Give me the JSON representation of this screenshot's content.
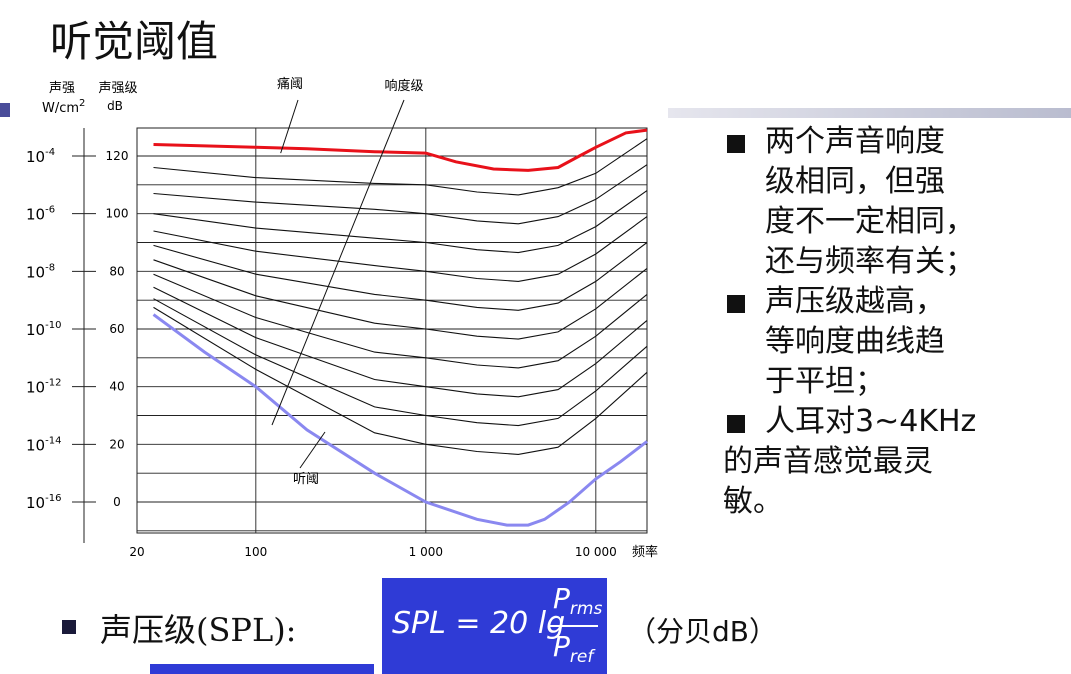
{
  "title": "听觉阈值",
  "chart_data": {
    "type": "line",
    "ylabel_left_title": "声强",
    "ylabel_left_unit": "W/cm",
    "ylabel_left_unit_sup": "2",
    "ylabel_right_title": "声强级",
    "ylabel_right_unit": "dB",
    "xlabel": "频率",
    "x_scale": "log",
    "xlim": [
      20,
      20000
    ],
    "ylim": [
      -10,
      130
    ],
    "x_tick_labels": [
      {
        "x": 20,
        "label": "20"
      },
      {
        "x": 100,
        "label": "100"
      },
      {
        "x": 1000,
        "label": "1 000"
      },
      {
        "x": 10000,
        "label": "10 000"
      }
    ],
    "y_ticks": [
      {
        "db": 120,
        "label": "120",
        "intensity_base": "10",
        "intensity_exp": "-4"
      },
      {
        "db": 100,
        "label": "100",
        "intensity_base": "10",
        "intensity_exp": "-6"
      },
      {
        "db": 80,
        "label": "80",
        "intensity_base": "10",
        "intensity_exp": "-8"
      },
      {
        "db": 60,
        "label": "60",
        "intensity_base": "10",
        "intensity_exp": "-10"
      },
      {
        "db": 40,
        "label": "40",
        "intensity_base": "10",
        "intensity_exp": "-12"
      },
      {
        "db": 20,
        "label": "20",
        "intensity_base": "10",
        "intensity_exp": "-14"
      },
      {
        "db": 0,
        "label": "0",
        "intensity_base": "10",
        "intensity_exp": "-16"
      }
    ],
    "annotations": [
      {
        "label": "痛阈",
        "target_x": 140,
        "target_db": 121
      },
      {
        "label": "响度级",
        "target_x": 70,
        "target_db": 27
      },
      {
        "label": "听阈",
        "target_x": 200,
        "target_db": 20
      }
    ],
    "pain_threshold": {
      "color": "#e8111a",
      "x": [
        25,
        50,
        100,
        200,
        500,
        1000,
        1500,
        2500,
        4000,
        6000,
        8000,
        10000,
        15000,
        20000
      ],
      "y": [
        124,
        123.5,
        123,
        122.5,
        121.5,
        121,
        118,
        115.5,
        115,
        116,
        120,
        123,
        128,
        129
      ]
    },
    "hearing_threshold": {
      "color": "#8a88f0",
      "x": [
        25,
        50,
        100,
        200,
        500,
        1000,
        2000,
        3000,
        4000,
        5000,
        7000,
        10000,
        14000,
        20000
      ],
      "y": [
        65,
        52,
        40,
        25,
        10,
        0,
        -6,
        -8,
        -8,
        -6,
        0,
        8,
        14,
        21
      ]
    },
    "loudness_contours": [
      {
        "x": [
          25,
          100,
          500,
          1000,
          2000,
          3500,
          6000,
          10000,
          20000
        ],
        "y": [
          116,
          112.5,
          110.5,
          110,
          107.5,
          106.5,
          109,
          114,
          126
        ]
      },
      {
        "x": [
          25,
          100,
          500,
          1000,
          2000,
          3500,
          6000,
          10000,
          20000
        ],
        "y": [
          107,
          104,
          101.5,
          100,
          97.5,
          96.5,
          99,
          105,
          117
        ]
      },
      {
        "x": [
          25,
          100,
          500,
          1000,
          2000,
          3500,
          6000,
          10000,
          20000
        ],
        "y": [
          100,
          95,
          91.5,
          90,
          87.5,
          86.5,
          89,
          95.5,
          108
        ]
      },
      {
        "x": [
          25,
          100,
          500,
          1000,
          2000,
          3500,
          6000,
          10000,
          20000
        ],
        "y": [
          94,
          87,
          82,
          80,
          77.5,
          76.5,
          79,
          86,
          99
        ]
      },
      {
        "x": [
          25,
          100,
          500,
          1000,
          2000,
          3500,
          6000,
          10000,
          20000
        ],
        "y": [
          89,
          79,
          72,
          70,
          67.5,
          66.5,
          69,
          76.5,
          90
        ]
      },
      {
        "x": [
          25,
          100,
          500,
          1000,
          2000,
          3500,
          6000,
          10000,
          20000
        ],
        "y": [
          84,
          71.5,
          62,
          60,
          57.5,
          56.5,
          59,
          67,
          81
        ]
      },
      {
        "x": [
          25,
          100,
          500,
          1000,
          2000,
          3500,
          6000,
          10000,
          20000
        ],
        "y": [
          79,
          64,
          52,
          50,
          47.5,
          46.5,
          49,
          57.5,
          72
        ]
      },
      {
        "x": [
          25,
          100,
          500,
          1000,
          2000,
          3500,
          6000,
          10000,
          20000
        ],
        "y": [
          74.5,
          57,
          42.5,
          40,
          37.5,
          36.5,
          39,
          48,
          63
        ]
      },
      {
        "x": [
          25,
          100,
          500,
          1000,
          2000,
          3500,
          6000,
          10000,
          20000
        ],
        "y": [
          70.5,
          51,
          33,
          30,
          27.5,
          26.5,
          29,
          38.5,
          54
        ]
      },
      {
        "x": [
          25,
          100,
          500,
          1000,
          2000,
          3500,
          6000,
          10000,
          20000
        ],
        "y": [
          67.5,
          46,
          24,
          20,
          17.5,
          16.5,
          19,
          29,
          45
        ]
      }
    ],
    "grid": true
  },
  "bullets": [
    {
      "marker": true,
      "text": "两个声音响度"
    },
    {
      "marker": false,
      "text": "级相同，但强"
    },
    {
      "marker": false,
      "text": "度不一定相同，"
    },
    {
      "marker": false,
      "text": "还与频率有关；"
    },
    {
      "marker": true,
      "text": "声压级越高，"
    },
    {
      "marker": false,
      "text": "等响度曲线趋"
    },
    {
      "marker": false,
      "text": "于平坦；"
    },
    {
      "marker": true,
      "text": "人耳对3~4KHz"
    },
    {
      "marker": false,
      "text": "的声音感觉最灵"
    },
    {
      "marker": false,
      "text": "敏。"
    }
  ],
  "spl": {
    "label": "声压级(SPL):",
    "formula_lhs": "SPL = 20 lg",
    "num_main": "P",
    "num_sub": "rms",
    "den_main": "P",
    "den_sub": "ref",
    "unit": "（分贝dB）"
  },
  "colors": {
    "pain": "#e8111a",
    "hearing": "#8a88f0",
    "formula_bg": "#2f3bd6"
  }
}
